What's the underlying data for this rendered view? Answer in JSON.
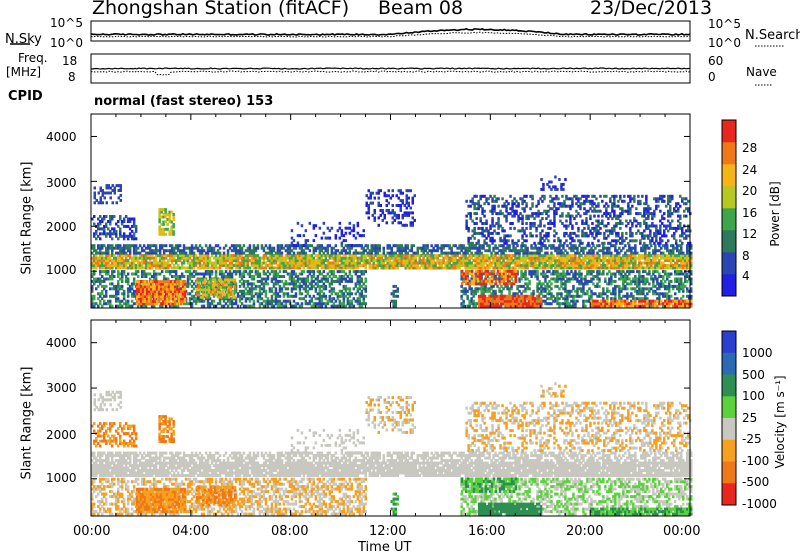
{
  "header": {
    "station": "Zhongshan Station (fitACF)",
    "beam": "Beam 08",
    "date": "23/Dec/2013"
  },
  "noise_panel": {
    "left_label": "N.Sky",
    "left_ticks": [
      "10^5",
      "10^0"
    ],
    "right_label": "N.Search",
    "right_ticks": [
      "10^5",
      "10^0"
    ]
  },
  "freq_panel": {
    "left_label_line1": "Freq.",
    "left_label_line2": "[MHz]",
    "left_ticks": [
      "18",
      "8"
    ],
    "right_label": "Nave",
    "right_ticks": [
      "60",
      "0"
    ]
  },
  "cpid": {
    "label": "CPID",
    "value": "normal (fast stereo) 153"
  },
  "chart_data": [
    {
      "type": "heatmap",
      "title": "",
      "ylabel": "Slant Range [km]",
      "xlabel": "",
      "ylim": [
        180,
        4500
      ],
      "yticks": [
        "1000",
        "2000",
        "3000",
        "4000"
      ],
      "colorbar_label": "Power [dB]",
      "colorbar_ticks": [
        "4",
        "8",
        "12",
        "16",
        "20",
        "24",
        "28"
      ],
      "colorbar_range": [
        0,
        30
      ],
      "colors": [
        "#1f1fe6",
        "#2a46b4",
        "#2d7a5a",
        "#3da64a",
        "#b8c81e",
        "#f5b418",
        "#f07818",
        "#e8281e"
      ]
    },
    {
      "type": "heatmap",
      "title": "",
      "ylabel": "Slant Range [km]",
      "xlabel": "Time UT",
      "ylim": [
        180,
        4500
      ],
      "yticks": [
        "1000",
        "2000",
        "3000",
        "4000"
      ],
      "xticks": [
        "00:00",
        "04:00",
        "08:00",
        "12:00",
        "16:00",
        "20:00",
        "00:00"
      ],
      "colorbar_label": "Velocity [m s⁻¹]",
      "colorbar_ticks": [
        "1000",
        "500",
        "100",
        "25",
        "-25",
        "-100",
        "-500",
        "-1000"
      ],
      "colors": [
        "#2a3ecf",
        "#2a6ab4",
        "#2d8f52",
        "#5ad23c",
        "#c8c8c0",
        "#f5a01e",
        "#f07818",
        "#e8281e"
      ]
    }
  ]
}
